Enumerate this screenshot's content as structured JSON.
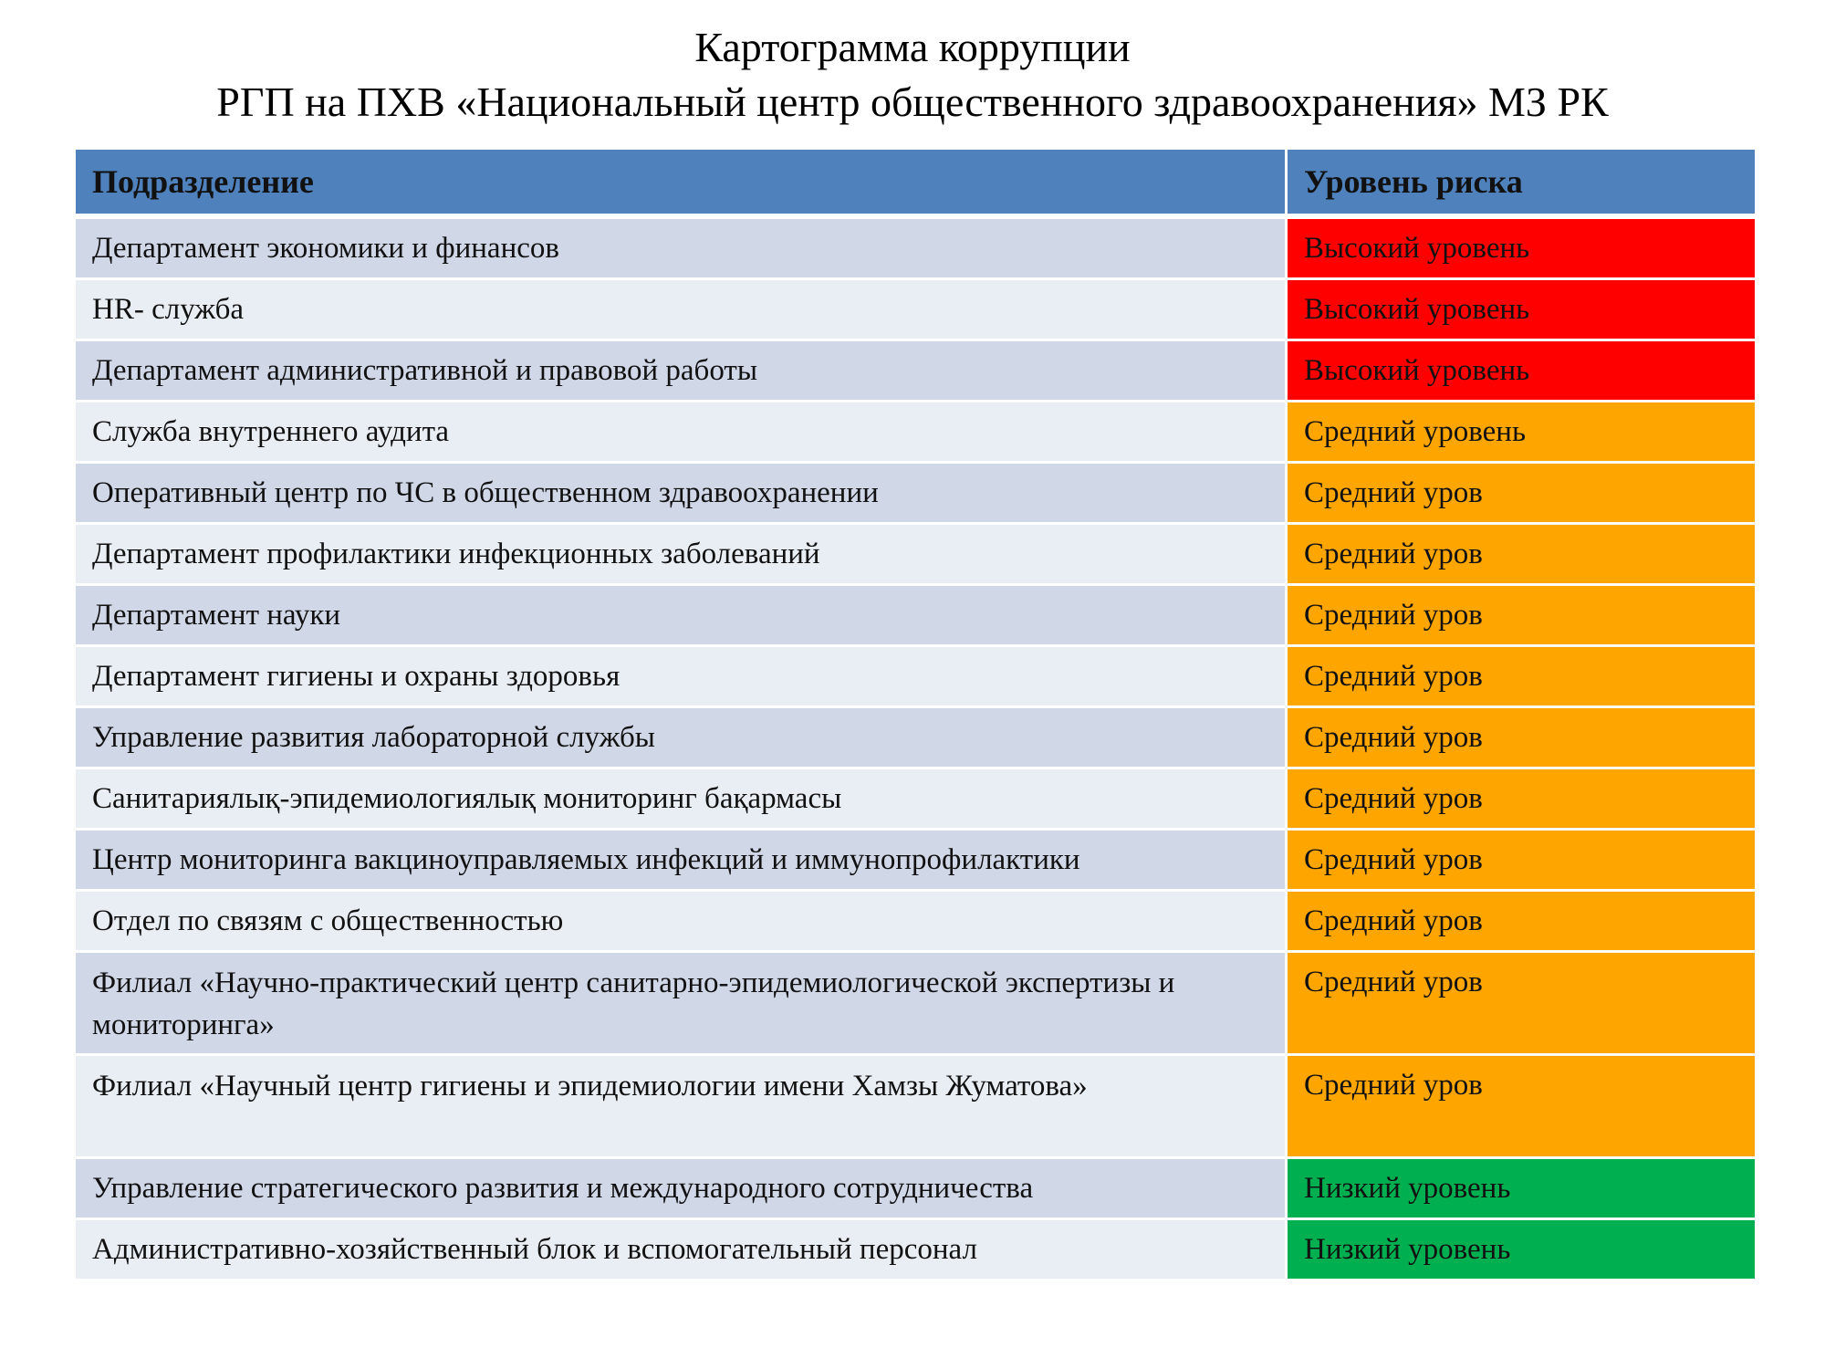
{
  "title": {
    "line1": "Картограмма коррупции",
    "line2": "РГП на ПХВ «Национальный центр общественного здравоохранения» МЗ РК"
  },
  "table": {
    "headers": [
      "Подразделение",
      "Уровень риска"
    ],
    "colors": {
      "high": "#ff0000",
      "medium": "#ffa500",
      "low": "#00b050",
      "header": "#4f81bd"
    },
    "rows": [
      {
        "unit": "Департамент экономики и финансов",
        "risk": "Высокий уровень",
        "level": "high"
      },
      {
        "unit": "HR- служба",
        "risk": "Высокий уровень",
        "level": "high"
      },
      {
        "unit": "Департамент административной и правовой работы",
        "risk": "Высокий уровень",
        "level": "high"
      },
      {
        "unit": "Служба внутреннего аудита",
        "risk": "Средний уровень",
        "level": "mid"
      },
      {
        "unit": "Оперативный центр по ЧС в общественном здравоохранении",
        "risk": "Средний уров",
        "level": "mid"
      },
      {
        "unit": "Департамент профилактики инфекционных заболеваний",
        "risk": "Средний уров",
        "level": "mid"
      },
      {
        "unit": "Департамент науки",
        "risk": "Средний уров",
        "level": "mid"
      },
      {
        "unit": "Департамент гигиены и охраны здоровья",
        "risk": "Средний уров",
        "level": "mid"
      },
      {
        "unit": "Управление развития лабораторной службы",
        "risk": "Средний уров",
        "level": "mid"
      },
      {
        "unit": "Санитариялық-эпидемиологиялық мониторинг бақармасы",
        "risk": "Средний уров",
        "level": "mid"
      },
      {
        "unit": "Центр мониторинга вакциноуправляемых инфекций и иммунопрофилактики",
        "risk": "Средний уров",
        "level": "mid"
      },
      {
        "unit": "Отдел по связям с общественностью",
        "risk": "Средний уров",
        "level": "mid"
      },
      {
        "unit": "Филиал «Научно-практический центр санитарно-эпидемиологической экспертизы и мониторинга»",
        "risk": "Средний уров",
        "level": "mid",
        "double": true
      },
      {
        "unit": "Филиал «Научный центр гигиены и эпидемиологии имени Хамзы Жуматова»",
        "risk": "Средний уров",
        "level": "mid",
        "double": true
      },
      {
        "unit": "Управление стратегического развития и международного сотрудничества",
        "risk": "Низкий уровень",
        "level": "low"
      },
      {
        "unit": "Административно-хозяйственный блок и вспомогательный персонал",
        "risk": "Низкий уровень",
        "level": "low"
      }
    ]
  }
}
